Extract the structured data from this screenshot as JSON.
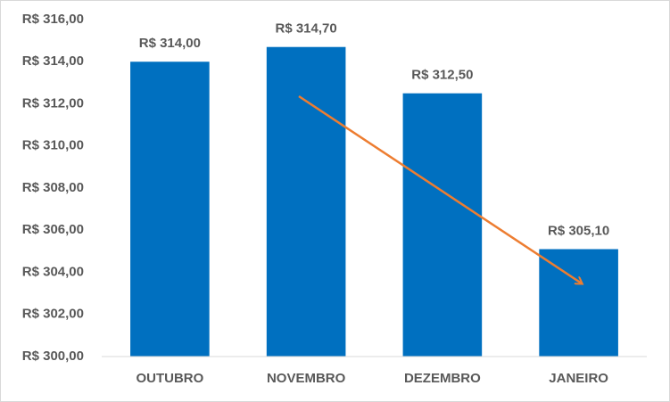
{
  "chart_data": {
    "type": "bar",
    "categories": [
      "OUTUBRO",
      "NOVEMBRO",
      "DEZEMBRO",
      "JANEIRO"
    ],
    "values": [
      314,
      314.7,
      312.5,
      305.1
    ],
    "value_labels": [
      "R$ 314,00",
      "R$ 314,70",
      "R$ 312,50",
      "R$ 305,10"
    ],
    "color": "#0070c0",
    "ylim": [
      300,
      316
    ],
    "yticks": [
      {
        "value": 300,
        "label": "R$ 300,00"
      },
      {
        "value": 302,
        "label": "R$ 302,00"
      },
      {
        "value": 304,
        "label": "R$ 304,00"
      },
      {
        "value": 306,
        "label": "R$ 306,00"
      },
      {
        "value": 308,
        "label": "R$ 308,00"
      },
      {
        "value": 310,
        "label": "R$ 310,00"
      },
      {
        "value": 312,
        "label": "R$ 312,00"
      },
      {
        "value": 314,
        "label": "R$ 314,00"
      },
      {
        "value": 316,
        "label": "R$ 316,00"
      }
    ],
    "grid": false
  }
}
